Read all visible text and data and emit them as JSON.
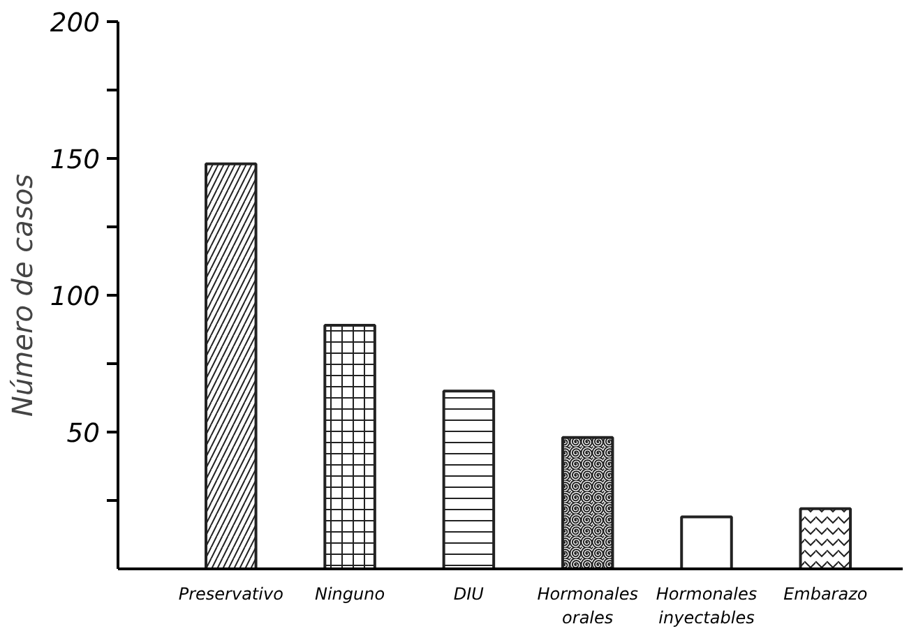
{
  "chart_data": {
    "type": "bar",
    "ylabel": "Número de casos",
    "categories": [
      "Preservativo",
      "Ninguno",
      "DIU",
      "Hormonales\norales",
      "Hormonales\ninyectables",
      "Embarazo"
    ],
    "values": [
      148,
      89,
      65,
      48,
      19,
      22
    ],
    "color": "#ffffff",
    "ylim": [
      0,
      200
    ],
    "yticks": [
      {
        "value": 25,
        "label": null
      },
      50,
      {
        "value": 75,
        "label": null
      },
      100,
      {
        "value": 125,
        "label": null
      },
      150,
      {
        "value": 175,
        "label": null
      },
      200
    ],
    "grid": false
  }
}
